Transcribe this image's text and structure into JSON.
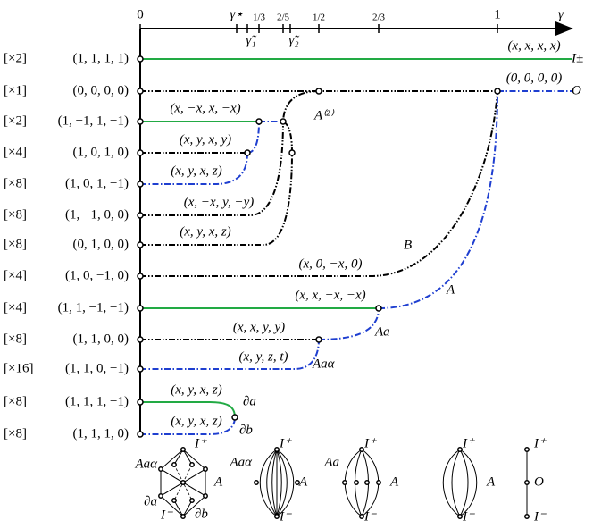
{
  "axis": {
    "ticks": [
      "0",
      "γ⋆",
      "1/3",
      "2/5",
      "1/2",
      "2/3",
      "1"
    ],
    "end_label": "γ",
    "lower_ticks": [
      "γ̃₁",
      "γ̃₂"
    ]
  },
  "rows": [
    {
      "multiplicity": "[×2]",
      "vector": "(1, 1, 1, 1)"
    },
    {
      "multiplicity": "[×1]",
      "vector": "(0, 0, 0, 0)"
    },
    {
      "multiplicity": "[×2]",
      "vector": "(1, −1, 1, −1)"
    },
    {
      "multiplicity": "[×4]",
      "vector": "(1, 0, 1, 0)"
    },
    {
      "multiplicity": "[×8]",
      "vector": "(1, 0, 1, −1)"
    },
    {
      "multiplicity": "[×8]",
      "vector": "(1, −1, 0, 0)"
    },
    {
      "multiplicity": "[×8]",
      "vector": "(0, 1, 0, 0)"
    },
    {
      "multiplicity": "[×4]",
      "vector": "(1, 0, −1, 0)"
    },
    {
      "multiplicity": "[×4]",
      "vector": "(1, 1, −1, −1)"
    },
    {
      "multiplicity": "[×8]",
      "vector": "(1, 1, 0, 0)"
    },
    {
      "multiplicity": "[×16]",
      "vector": "(1, 1, 0, −1)"
    },
    {
      "multiplicity": "[×8]",
      "vector": "(1, 1, 1, −1)"
    },
    {
      "multiplicity": "[×8]",
      "vector": "(1, 1, 1, 0)"
    }
  ],
  "branch_labels": [
    "(x, x, x, x)",
    "I±",
    "(0, 0, 0, 0)",
    "O",
    "(x, −x, x, −x)",
    "A⁽²⁾",
    "(x, y, x, y)",
    "(x, y, x, z)",
    "(x, −x, y, −y)",
    "(x, y, x, z)",
    "B",
    "(x, 0, −x, 0)",
    "(x, x, −x, −x)",
    "A",
    "Aa",
    "(x, x, y, y)",
    "(x, y, z, t)",
    "Aaα",
    "(x, y, x, z)",
    "∂a",
    "(x, y, x, z)",
    "∂b"
  ],
  "graphs": [
    {
      "labels": [
        "I⁺",
        "Aaα",
        "A",
        "∂a",
        "∂b",
        "I⁻"
      ]
    },
    {
      "labels": [
        "I⁺",
        "Aaα",
        "A",
        "I⁻"
      ]
    },
    {
      "labels": [
        "I⁺",
        "Aa",
        "A",
        "I⁻"
      ]
    },
    {
      "labels": [
        "I⁺",
        "A",
        "I⁻"
      ]
    },
    {
      "labels": [
        "I⁺",
        "O",
        "I⁻"
      ]
    }
  ]
}
